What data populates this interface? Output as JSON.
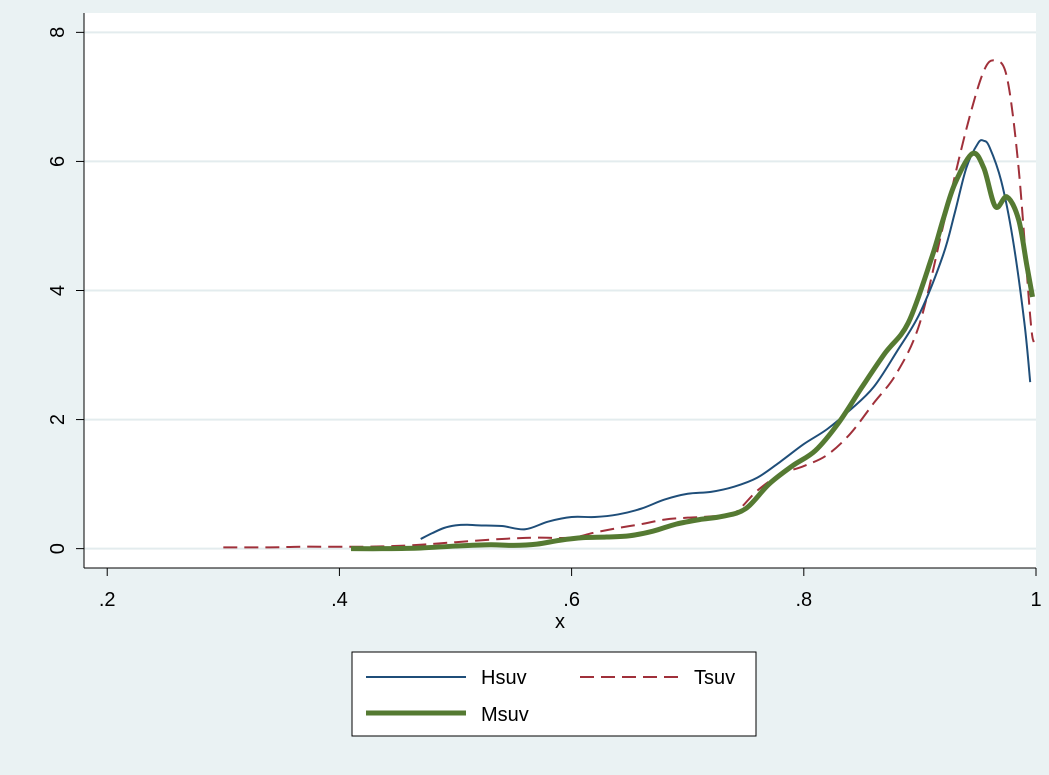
{
  "chart_data": {
    "type": "line",
    "title": "",
    "xlabel": "x",
    "ylabel": "",
    "xlim": [
      0.18,
      1.0
    ],
    "ylim": [
      -0.3,
      8.3
    ],
    "x_ticks": [
      0.2,
      0.4,
      0.6,
      0.8,
      1.0
    ],
    "x_tick_labels": [
      ".2",
      ".4",
      ".6",
      ".8",
      "1"
    ],
    "y_ticks": [
      0,
      2,
      4,
      6,
      8
    ],
    "y_tick_labels": [
      "0",
      "2",
      "4",
      "6",
      "8"
    ],
    "grid": true,
    "legend_position": "bottom",
    "series": [
      {
        "name": "Hsuv",
        "color": "#1f4e79",
        "style": "solid",
        "width": 2,
        "points": [
          [
            0.47,
            0.15
          ],
          [
            0.48,
            0.24
          ],
          [
            0.49,
            0.32
          ],
          [
            0.5,
            0.36
          ],
          [
            0.51,
            0.37
          ],
          [
            0.52,
            0.36
          ],
          [
            0.54,
            0.35
          ],
          [
            0.56,
            0.3
          ],
          [
            0.58,
            0.42
          ],
          [
            0.6,
            0.49
          ],
          [
            0.62,
            0.49
          ],
          [
            0.64,
            0.53
          ],
          [
            0.66,
            0.62
          ],
          [
            0.68,
            0.76
          ],
          [
            0.7,
            0.85
          ],
          [
            0.72,
            0.88
          ],
          [
            0.74,
            0.96
          ],
          [
            0.76,
            1.1
          ],
          [
            0.78,
            1.35
          ],
          [
            0.8,
            1.62
          ],
          [
            0.82,
            1.85
          ],
          [
            0.84,
            2.15
          ],
          [
            0.86,
            2.5
          ],
          [
            0.88,
            3.05
          ],
          [
            0.9,
            3.65
          ],
          [
            0.92,
            4.55
          ],
          [
            0.93,
            5.2
          ],
          [
            0.94,
            5.9
          ],
          [
            0.95,
            6.28
          ],
          [
            0.955,
            6.32
          ],
          [
            0.96,
            6.22
          ],
          [
            0.97,
            5.7
          ],
          [
            0.98,
            4.8
          ],
          [
            0.99,
            3.5
          ],
          [
            0.995,
            2.58
          ]
        ]
      },
      {
        "name": "Tsuv",
        "color": "#a0303a",
        "style": "dashed",
        "width": 2,
        "points": [
          [
            0.3,
            0.02
          ],
          [
            0.34,
            0.02
          ],
          [
            0.37,
            0.03
          ],
          [
            0.42,
            0.03
          ],
          [
            0.46,
            0.05
          ],
          [
            0.5,
            0.1
          ],
          [
            0.54,
            0.15
          ],
          [
            0.57,
            0.17
          ],
          [
            0.6,
            0.17
          ],
          [
            0.62,
            0.25
          ],
          [
            0.64,
            0.32
          ],
          [
            0.66,
            0.38
          ],
          [
            0.68,
            0.45
          ],
          [
            0.7,
            0.48
          ],
          [
            0.72,
            0.5
          ],
          [
            0.74,
            0.55
          ],
          [
            0.76,
            0.9
          ],
          [
            0.78,
            1.15
          ],
          [
            0.8,
            1.28
          ],
          [
            0.82,
            1.45
          ],
          [
            0.84,
            1.78
          ],
          [
            0.86,
            2.25
          ],
          [
            0.88,
            2.72
          ],
          [
            0.9,
            3.5
          ],
          [
            0.92,
            5.0
          ],
          [
            0.94,
            6.5
          ],
          [
            0.955,
            7.4
          ],
          [
            0.965,
            7.56
          ],
          [
            0.975,
            7.3
          ],
          [
            0.985,
            5.9
          ],
          [
            0.995,
            3.6
          ],
          [
            0.998,
            3.2
          ]
        ]
      },
      {
        "name": "Msuv",
        "color": "#557a32",
        "style": "solid",
        "width": 5,
        "points": [
          [
            0.41,
            0.0
          ],
          [
            0.44,
            0.0
          ],
          [
            0.47,
            0.01
          ],
          [
            0.5,
            0.04
          ],
          [
            0.53,
            0.06
          ],
          [
            0.55,
            0.05
          ],
          [
            0.57,
            0.07
          ],
          [
            0.59,
            0.13
          ],
          [
            0.61,
            0.17
          ],
          [
            0.63,
            0.18
          ],
          [
            0.65,
            0.2
          ],
          [
            0.67,
            0.27
          ],
          [
            0.69,
            0.38
          ],
          [
            0.71,
            0.45
          ],
          [
            0.73,
            0.5
          ],
          [
            0.75,
            0.62
          ],
          [
            0.77,
            1.0
          ],
          [
            0.79,
            1.28
          ],
          [
            0.81,
            1.52
          ],
          [
            0.83,
            1.95
          ],
          [
            0.85,
            2.5
          ],
          [
            0.87,
            3.03
          ],
          [
            0.89,
            3.5
          ],
          [
            0.91,
            4.5
          ],
          [
            0.92,
            5.1
          ],
          [
            0.93,
            5.65
          ],
          [
            0.945,
            6.12
          ],
          [
            0.955,
            5.9
          ],
          [
            0.965,
            5.3
          ],
          [
            0.975,
            5.45
          ],
          [
            0.985,
            5.1
          ],
          [
            0.992,
            4.4
          ],
          [
            0.997,
            3.9
          ]
        ]
      }
    ]
  }
}
